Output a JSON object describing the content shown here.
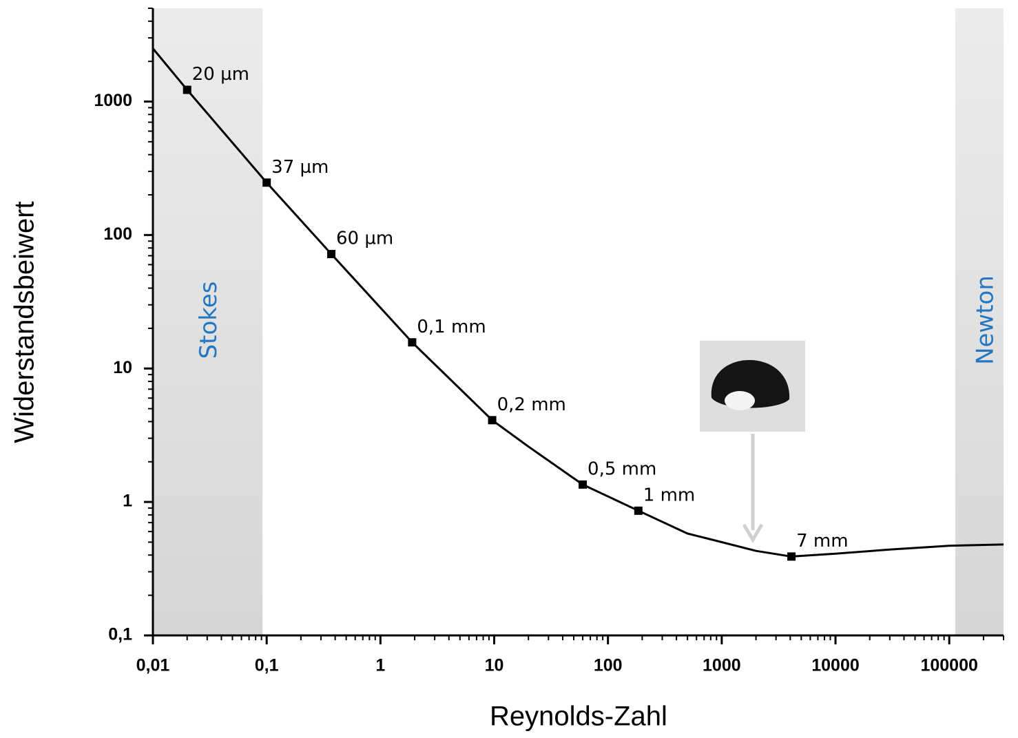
{
  "chart_data": {
    "type": "line",
    "xscale": "log",
    "yscale": "log",
    "xlabel": "Reynolds-Zahl",
    "ylabel": "Widerstandsbeiwert",
    "xlim": [
      0.01,
      300000
    ],
    "ylim": [
      0.1,
      5000
    ],
    "xticks": [
      {
        "value": 0.01,
        "label": "0,01"
      },
      {
        "value": 0.1,
        "label": "0,1"
      },
      1,
      10,
      100,
      1000,
      10000,
      100000
    ],
    "yticks": [
      {
        "value": 0.1,
        "label": "0,1"
      },
      1,
      10,
      100,
      1000
    ],
    "regions": [
      {
        "label": "Stokes",
        "x": [
          0.01,
          0.092
        ]
      },
      {
        "label": "Newton",
        "x": [
          113000,
          300000
        ]
      }
    ],
    "curve": {
      "color": "#000000",
      "x": [
        0.01,
        0.02,
        0.1,
        0.37,
        1.9,
        9.6,
        20,
        60,
        185,
        500,
        1000,
        2000,
        4100,
        10000,
        30000,
        100000,
        300000
      ],
      "values": [
        2500,
        1224,
        247,
        72,
        15.7,
        4.1,
        2.6,
        1.35,
        0.86,
        0.58,
        0.5,
        0.43,
        0.39,
        0.41,
        0.44,
        0.47,
        0.48
      ]
    },
    "points": {
      "color": "#000000",
      "x": [
        0.02,
        0.1,
        0.37,
        1.9,
        9.6,
        60,
        185,
        4100
      ],
      "values": [
        1224,
        247,
        72,
        15.7,
        4.1,
        1.35,
        0.86,
        0.39
      ],
      "labels": [
        "20 µm",
        "37 µm",
        "60 µm",
        "0,1 mm",
        "0,2 mm",
        "0,5 mm",
        "1 mm",
        "7 mm"
      ]
    }
  }
}
